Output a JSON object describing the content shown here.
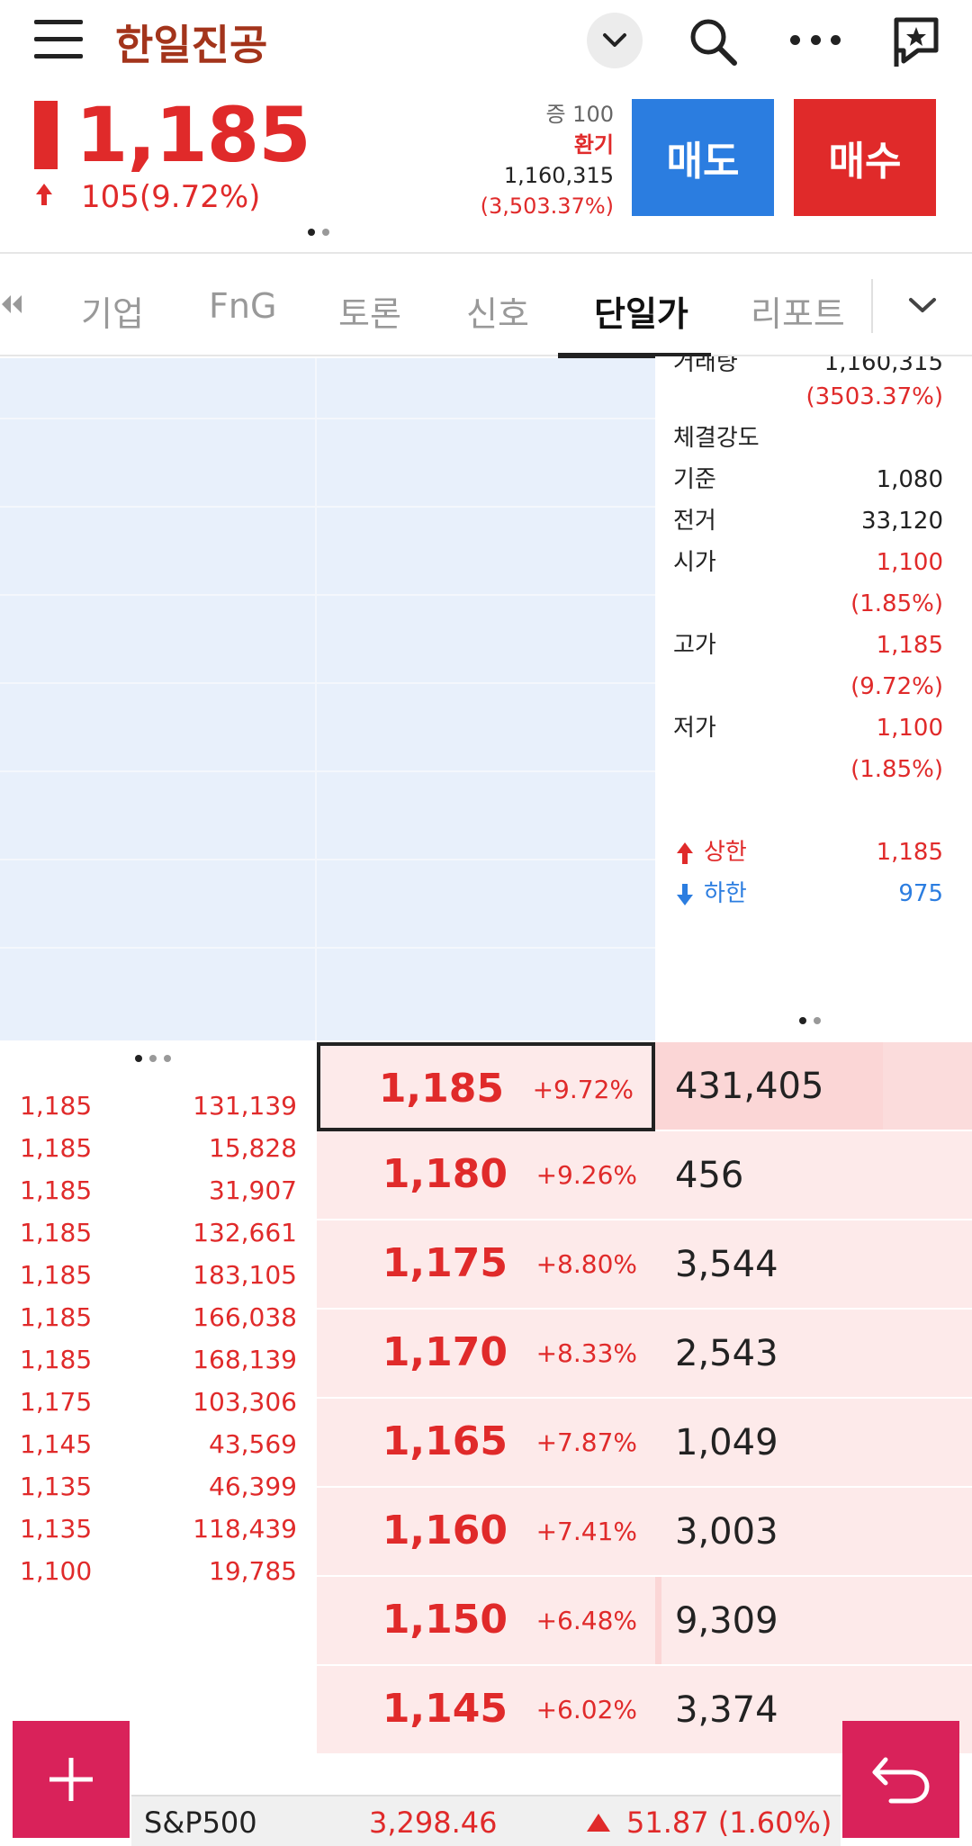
{
  "header": {
    "stock_name": "한일진공",
    "icons": [
      "menu-icon",
      "chevron-down-icon",
      "search-icon",
      "more-icon",
      "flag-icon"
    ]
  },
  "quote": {
    "price": "1,185",
    "change": "105(9.72%)",
    "margin_label": "증 100",
    "turnover_label": "환기",
    "volume": "1,160,315",
    "volume_ratio": "(3,503.37%)",
    "sell_label": "매도",
    "buy_label": "매수",
    "colors": {
      "up": "#e02a2a",
      "sell": "#2b7de0",
      "buy": "#e02a2a"
    }
  },
  "tabs": {
    "items": [
      "기업",
      "FnG",
      "토론",
      "신호",
      "단일가",
      "리포트"
    ],
    "active": "단일가"
  },
  "info_panel": {
    "volume_label": "거래량",
    "volume": "1,160,315",
    "volume_ratio": "(3503.37%)",
    "strength_label": "체결강도",
    "base_label": "기준",
    "base": "1,080",
    "prev_label": "전거",
    "prev": "33,120",
    "open_label": "시가",
    "open": "1,100",
    "open_pct": "(1.85%)",
    "high_label": "고가",
    "high": "1,185",
    "high_pct": "(9.72%)",
    "low_label": "저가",
    "low": "1,100",
    "low_pct": "(1.85%)",
    "upper_limit_label": "상한",
    "upper_limit": "1,185",
    "lower_limit_label": "하한",
    "lower_limit": "975"
  },
  "ticks": [
    {
      "price": "1,185",
      "qty": "131,139"
    },
    {
      "price": "1,185",
      "qty": "15,828"
    },
    {
      "price": "1,185",
      "qty": "31,907"
    },
    {
      "price": "1,185",
      "qty": "132,661"
    },
    {
      "price": "1,185",
      "qty": "183,105"
    },
    {
      "price": "1,185",
      "qty": "166,038"
    },
    {
      "price": "1,185",
      "qty": "168,139"
    },
    {
      "price": "1,175",
      "qty": "103,306"
    },
    {
      "price": "1,145",
      "qty": "43,569"
    },
    {
      "price": "1,135",
      "qty": "46,399"
    },
    {
      "price": "1,135",
      "qty": "118,439"
    },
    {
      "price": "1,100",
      "qty": "19,785"
    }
  ],
  "book": [
    {
      "price": "1,185",
      "rate": "+9.72%",
      "qty": "431,405",
      "fill": 0.72
    },
    {
      "price": "1,180",
      "rate": "+9.26%",
      "qty": "456",
      "fill": 0.0
    },
    {
      "price": "1,175",
      "rate": "+8.80%",
      "qty": "3,544",
      "fill": 0.0
    },
    {
      "price": "1,170",
      "rate": "+8.33%",
      "qty": "2,543",
      "fill": 0.0
    },
    {
      "price": "1,165",
      "rate": "+7.87%",
      "qty": "1,049",
      "fill": 0.0
    },
    {
      "price": "1,160",
      "rate": "+7.41%",
      "qty": "3,003",
      "fill": 0.0
    },
    {
      "price": "1,150",
      "rate": "+6.48%",
      "qty": "9,309",
      "fill": 0.02
    },
    {
      "price": "1,145",
      "rate": "+6.02%",
      "qty": "3,374",
      "fill": 0.0
    }
  ],
  "ticker": {
    "name": "S&P500",
    "value": "3,298.46",
    "change": "51.87 (1.60%)"
  }
}
